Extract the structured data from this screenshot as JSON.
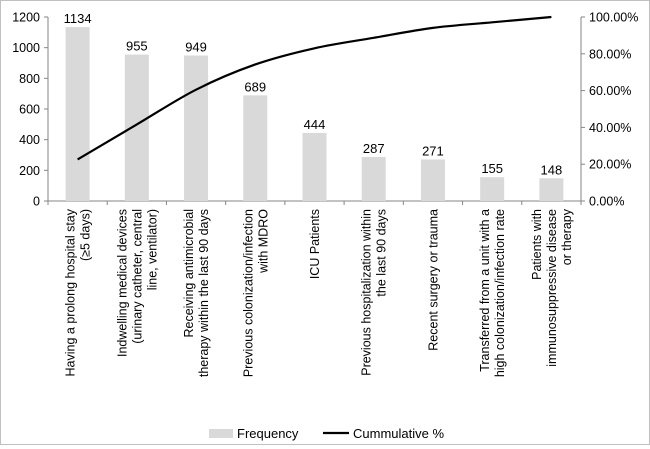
{
  "chart_data": {
    "type": "bar",
    "title": "",
    "xlabel": "",
    "ylabel": "",
    "categories": [
      [
        "Having a prolong hospital stay",
        "(≥5 days)"
      ],
      [
        "Indwelling medical devices",
        "(urinary catheter, central",
        "line, ventilator)"
      ],
      [
        "Receiving antimicrobial",
        "therapy within the last 90 days"
      ],
      [
        "Previous colonization/infection",
        "with MDRO"
      ],
      [
        "ICU Patients"
      ],
      [
        "Previous hospitalization within",
        "the last 90 days"
      ],
      [
        "Recent surgery or trauma"
      ],
      [
        "Transferred from a unit with a",
        "high colonization/infection rate"
      ],
      [
        "Patients with",
        "immunosuppressive disease",
        "or therapy"
      ]
    ],
    "series": [
      {
        "name": "Frequency",
        "type": "bar",
        "axis": "left",
        "color": "#d9d9d9",
        "values": [
          1134,
          955,
          949,
          689,
          444,
          287,
          271,
          155,
          148
        ]
      },
      {
        "name": "Cummulative %",
        "type": "line",
        "axis": "right",
        "color": "#000000",
        "values": [
          22.6,
          41.6,
          60.5,
          74.2,
          83.0,
          88.7,
          94.1,
          97.1,
          100.0
        ]
      }
    ],
    "data_labels": [
      "1134",
      "955",
      "949",
      "689",
      "444",
      "287",
      "271",
      "155",
      "148"
    ],
    "y_left": {
      "ylim": [
        0,
        1200
      ],
      "ticks": [
        "0",
        "200",
        "400",
        "600",
        "800",
        "1000",
        "1200"
      ]
    },
    "y_right": {
      "ylim": [
        0,
        100
      ],
      "ticks": [
        "0.00%",
        "20.00%",
        "40.00%",
        "60.00%",
        "80.00%",
        "100.00%"
      ]
    },
    "legend": {
      "position": "bottom",
      "items": [
        {
          "label": "Frequency",
          "kind": "bar",
          "color": "#d9d9d9"
        },
        {
          "label": "Cummulative %",
          "kind": "line",
          "color": "#000000"
        }
      ]
    }
  }
}
